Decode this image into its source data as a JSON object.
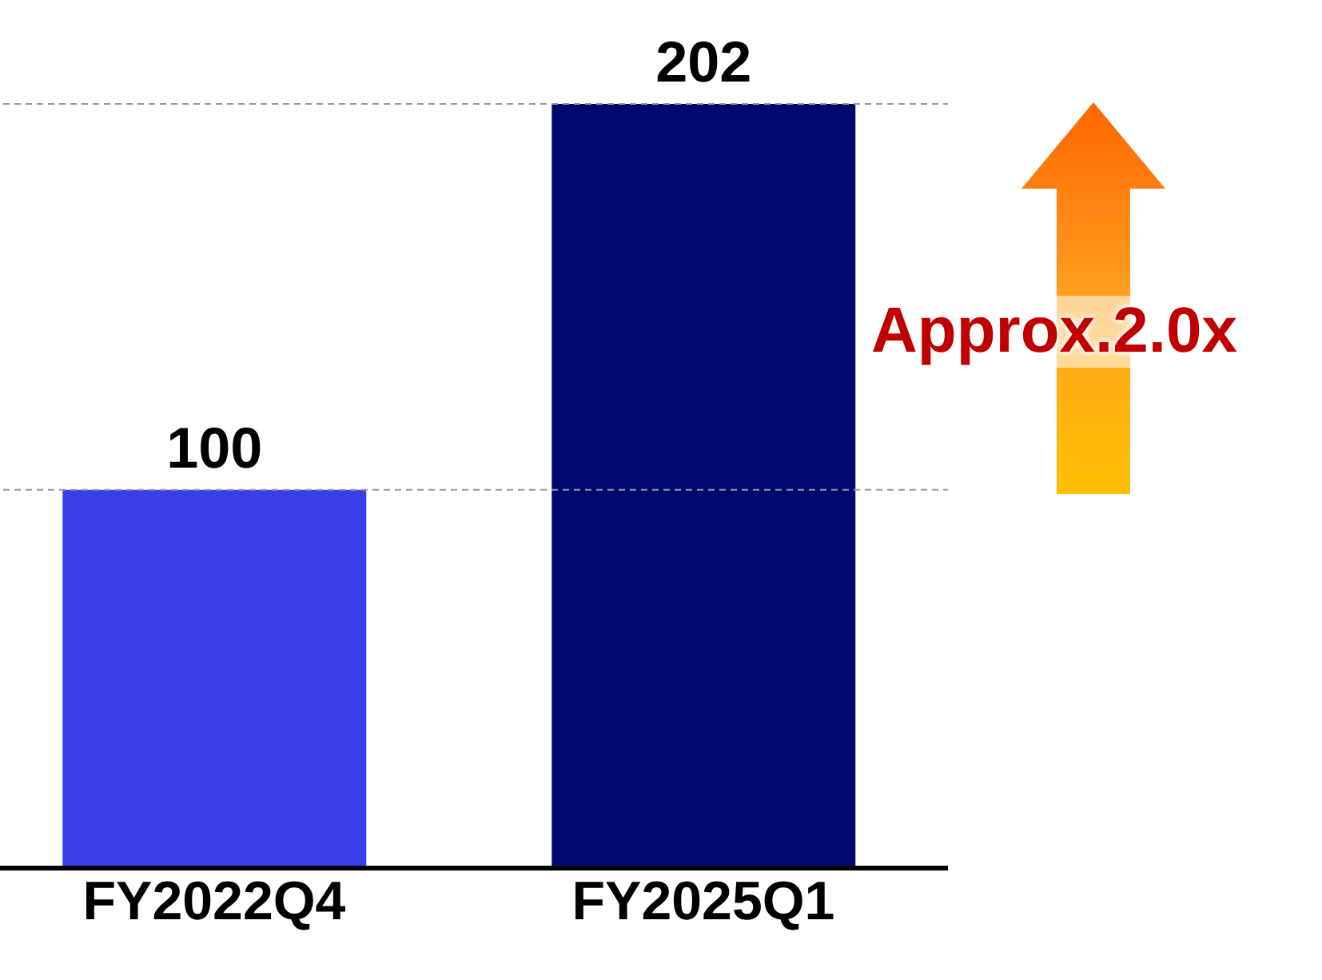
{
  "chart_data": {
    "type": "bar",
    "categories": [
      "FY2022Q4",
      "FY2025Q1"
    ],
    "values": [
      100,
      202
    ],
    "colors": [
      "#3a3ee8",
      "#000a6e"
    ],
    "data_labels": true,
    "annotations": [
      "Approx.2.0x"
    ],
    "ref_lines": [
      {
        "axis": "y",
        "value": 100,
        "color": "#999999",
        "line_style": "dashed"
      },
      {
        "axis": "y",
        "value": 202,
        "color": "#999999",
        "line_style": "dashed"
      }
    ]
  }
}
